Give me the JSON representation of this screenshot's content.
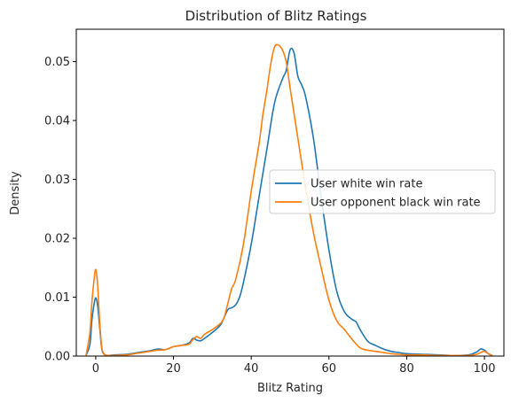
{
  "chart_data": {
    "type": "line",
    "title": "Distribution of Blitz Ratings",
    "xlabel": "Blitz Rating",
    "ylabel": "Density",
    "xlim": [
      -5,
      105
    ],
    "ylim": [
      0,
      0.0555
    ],
    "xticks": [
      0,
      20,
      40,
      60,
      80,
      100
    ],
    "yticks": [
      0.0,
      0.01,
      0.02,
      0.03,
      0.04,
      0.05
    ],
    "ytick_labels": [
      "0.00",
      "0.01",
      "0.02",
      "0.03",
      "0.04",
      "0.05"
    ],
    "grid": false,
    "legend": "center-right",
    "series": [
      {
        "name": "User white win rate",
        "color": "#1f77b4",
        "x": [
          -2.5,
          -1.5,
          -1,
          -0.5,
          0,
          0.5,
          1,
          1.5,
          2,
          3,
          5,
          8,
          10,
          12,
          14,
          16,
          18,
          20,
          22,
          24,
          25,
          26,
          27,
          28,
          30,
          32,
          33,
          34,
          35,
          36,
          37,
          38,
          40,
          42,
          44,
          46,
          48,
          49,
          50,
          51,
          52,
          53,
          54,
          56,
          58,
          60,
          62,
          64,
          66,
          67,
          68,
          70,
          72,
          74,
          76,
          78,
          80,
          84,
          88,
          92,
          96,
          98,
          99,
          100,
          101,
          102
        ],
        "y": [
          0.0001,
          0.002,
          0.006,
          0.0085,
          0.0099,
          0.0085,
          0.005,
          0.0015,
          0.0004,
          0.0001,
          0.0002,
          0.0003,
          0.0005,
          0.0007,
          0.0009,
          0.0012,
          0.0011,
          0.0016,
          0.0018,
          0.0022,
          0.003,
          0.0027,
          0.0026,
          0.003,
          0.004,
          0.0052,
          0.0065,
          0.0079,
          0.0082,
          0.0087,
          0.01,
          0.0125,
          0.019,
          0.027,
          0.035,
          0.043,
          0.047,
          0.0485,
          0.052,
          0.0515,
          0.0475,
          0.046,
          0.044,
          0.037,
          0.027,
          0.018,
          0.011,
          0.0075,
          0.0062,
          0.0058,
          0.0045,
          0.0025,
          0.0018,
          0.0012,
          0.0008,
          0.0006,
          0.0004,
          0.0003,
          0.0002,
          0.0001,
          0.0002,
          0.0007,
          0.0012,
          0.001,
          0.0004,
          0.0001
        ]
      },
      {
        "name": "User opponent black win rate",
        "color": "#ff7f0e",
        "x": [
          -2.5,
          -1.5,
          -1,
          -0.5,
          0,
          0.5,
          1,
          1.5,
          2,
          3,
          5,
          8,
          10,
          12,
          14,
          16,
          18,
          20,
          22,
          24,
          25,
          26,
          27,
          28,
          30,
          32,
          33,
          34,
          35,
          36,
          38,
          40,
          42,
          43,
          44,
          45,
          46,
          47,
          48,
          49,
          50,
          52,
          54,
          56,
          58,
          60,
          62,
          64,
          66,
          68,
          70,
          72,
          74,
          76,
          78,
          80,
          84,
          88,
          92,
          96,
          98,
          99,
          100,
          101,
          102
        ],
        "y": [
          0.0001,
          0.004,
          0.009,
          0.0125,
          0.0147,
          0.012,
          0.006,
          0.0018,
          0.0005,
          0.0001,
          0.0001,
          0.0002,
          0.0004,
          0.0006,
          0.0008,
          0.001,
          0.0011,
          0.0016,
          0.0018,
          0.002,
          0.0028,
          0.0033,
          0.003,
          0.0037,
          0.0045,
          0.0055,
          0.0065,
          0.009,
          0.0115,
          0.013,
          0.019,
          0.028,
          0.036,
          0.041,
          0.045,
          0.0495,
          0.0525,
          0.0528,
          0.052,
          0.05,
          0.0455,
          0.037,
          0.0285,
          0.021,
          0.015,
          0.0095,
          0.006,
          0.0045,
          0.0028,
          0.0014,
          0.001,
          0.0008,
          0.0006,
          0.0004,
          0.0003,
          0.0002,
          0.0002,
          0.0001,
          0.0001,
          0.0001,
          0.0003,
          0.0006,
          0.0008,
          0.0004,
          0.0001
        ]
      }
    ]
  }
}
